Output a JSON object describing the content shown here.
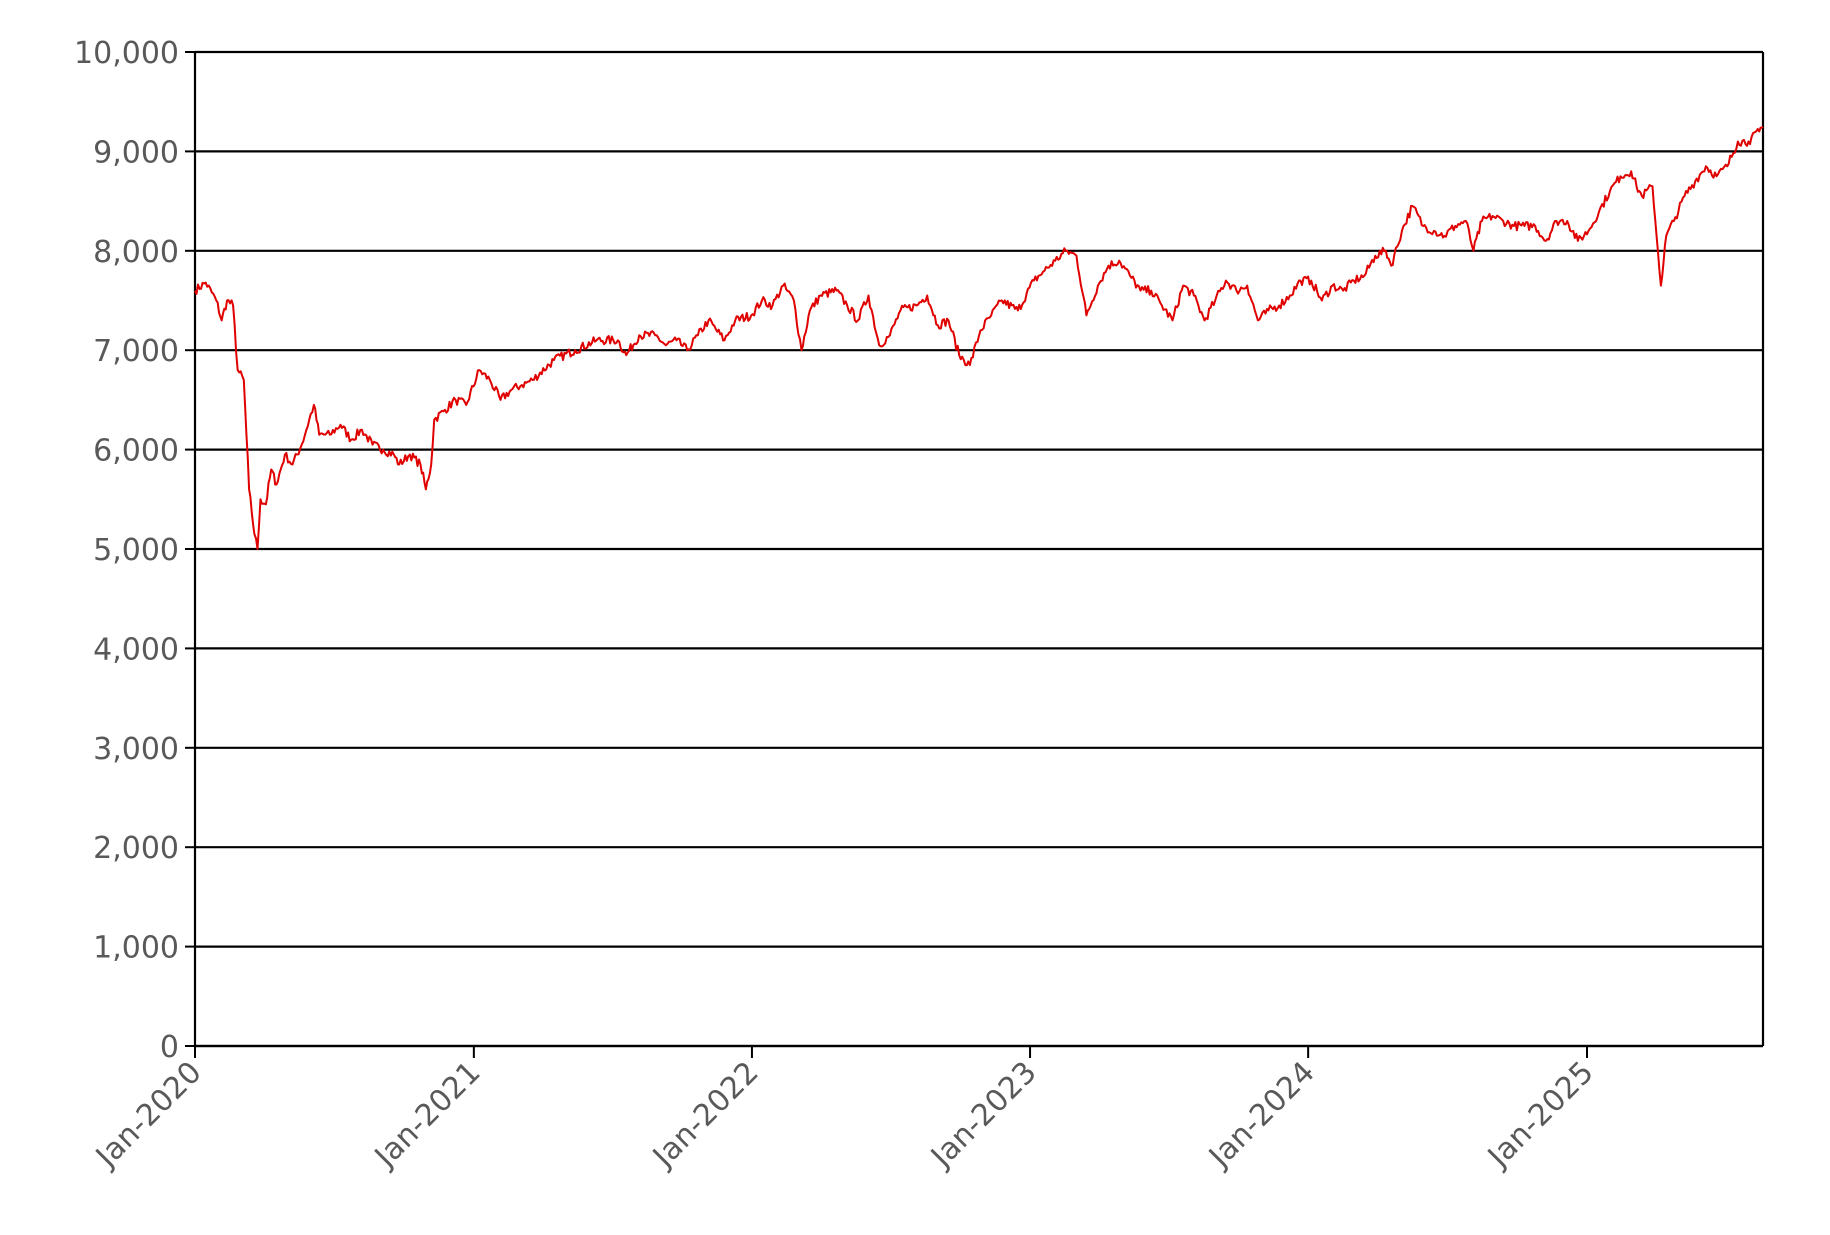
{
  "chart_data": {
    "type": "line",
    "title": "",
    "xlabel": "",
    "ylabel": "",
    "ylim": [
      0,
      10000
    ],
    "xlim": [
      "2020-01-01",
      "2025-08-20"
    ],
    "grid": true,
    "legend": "none",
    "y_ticks": [
      {
        "value": 0,
        "label": "0"
      },
      {
        "value": 1000,
        "label": "1,000"
      },
      {
        "value": 2000,
        "label": "2,000"
      },
      {
        "value": 3000,
        "label": "3,000"
      },
      {
        "value": 4000,
        "label": "4,000"
      },
      {
        "value": 5000,
        "label": "5,000"
      },
      {
        "value": 6000,
        "label": "6,000"
      },
      {
        "value": 7000,
        "label": "7,000"
      },
      {
        "value": 8000,
        "label": "8,000"
      },
      {
        "value": 9000,
        "label": "9,000"
      },
      {
        "value": 10000,
        "label": "10,000"
      }
    ],
    "x_ticks": [
      {
        "date": "2020-01-01",
        "label": "Jan-2020"
      },
      {
        "date": "2021-01-01",
        "label": "Jan-2021"
      },
      {
        "date": "2022-01-01",
        "label": "Jan-2022"
      },
      {
        "date": "2023-01-01",
        "label": "Jan-2023"
      },
      {
        "date": "2024-01-01",
        "label": "Jan-2024"
      },
      {
        "date": "2025-01-01",
        "label": "Jan-2025"
      }
    ],
    "series": [
      {
        "color": "#e00000",
        "points": [
          [
            "2020-01-01",
            7600
          ],
          [
            "2020-01-15",
            7680
          ],
          [
            "2020-01-29",
            7500
          ],
          [
            "2020-02-05",
            7300
          ],
          [
            "2020-02-12",
            7500
          ],
          [
            "2020-02-20",
            7450
          ],
          [
            "2020-02-26",
            6800
          ],
          [
            "2020-03-05",
            6700
          ],
          [
            "2020-03-12",
            5600
          ],
          [
            "2020-03-19",
            5150
          ],
          [
            "2020-03-23",
            5000
          ],
          [
            "2020-03-27",
            5500
          ],
          [
            "2020-04-03",
            5450
          ],
          [
            "2020-04-10",
            5800
          ],
          [
            "2020-04-17",
            5650
          ],
          [
            "2020-04-28",
            5950
          ],
          [
            "2020-05-08",
            5850
          ],
          [
            "2020-05-20",
            6050
          ],
          [
            "2020-06-05",
            6450
          ],
          [
            "2020-06-12",
            6150
          ],
          [
            "2020-06-26",
            6150
          ],
          [
            "2020-07-10",
            6250
          ],
          [
            "2020-07-24",
            6100
          ],
          [
            "2020-08-07",
            6200
          ],
          [
            "2020-08-21",
            6050
          ],
          [
            "2020-09-04",
            6000
          ],
          [
            "2020-09-18",
            5950
          ],
          [
            "2020-09-25",
            5850
          ],
          [
            "2020-10-09",
            5950
          ],
          [
            "2020-10-23",
            5850
          ],
          [
            "2020-10-30",
            5600
          ],
          [
            "2020-11-06",
            5850
          ],
          [
            "2020-11-10",
            6300
          ],
          [
            "2020-11-24",
            6400
          ],
          [
            "2020-12-08",
            6500
          ],
          [
            "2020-12-22",
            6450
          ],
          [
            "2021-01-08",
            6800
          ],
          [
            "2021-01-22",
            6700
          ],
          [
            "2021-02-05",
            6500
          ],
          [
            "2021-02-19",
            6600
          ],
          [
            "2021-03-05",
            6650
          ],
          [
            "2021-03-19",
            6700
          ],
          [
            "2021-04-16",
            6900
          ],
          [
            "2021-05-14",
            7000
          ],
          [
            "2021-06-11",
            7100
          ],
          [
            "2021-07-09",
            7100
          ],
          [
            "2021-07-20",
            6950
          ],
          [
            "2021-08-06",
            7150
          ],
          [
            "2021-08-27",
            7150
          ],
          [
            "2021-09-10",
            7050
          ],
          [
            "2021-09-24",
            7100
          ],
          [
            "2021-10-08",
            7000
          ],
          [
            "2021-10-22",
            7150
          ],
          [
            "2021-11-05",
            7300
          ],
          [
            "2021-11-26",
            7100
          ],
          [
            "2021-12-10",
            7300
          ],
          [
            "2021-12-31",
            7350
          ],
          [
            "2022-01-14",
            7500
          ],
          [
            "2022-01-28",
            7450
          ],
          [
            "2022-02-11",
            7650
          ],
          [
            "2022-02-25",
            7500
          ],
          [
            "2022-03-07",
            7000
          ],
          [
            "2022-03-18",
            7400
          ],
          [
            "2022-04-01",
            7550
          ],
          [
            "2022-04-22",
            7600
          ],
          [
            "2022-05-06",
            7450
          ],
          [
            "2022-05-20",
            7300
          ],
          [
            "2022-06-03",
            7550
          ],
          [
            "2022-06-17",
            7050
          ],
          [
            "2022-07-01",
            7150
          ],
          [
            "2022-07-15",
            7400
          ],
          [
            "2022-08-05",
            7450
          ],
          [
            "2022-08-19",
            7550
          ],
          [
            "2022-09-02",
            7250
          ],
          [
            "2022-09-16",
            7300
          ],
          [
            "2022-09-30",
            6950
          ],
          [
            "2022-10-14",
            6850
          ],
          [
            "2022-10-28",
            7200
          ],
          [
            "2022-11-11",
            7350
          ],
          [
            "2022-11-25",
            7500
          ],
          [
            "2022-12-16",
            7400
          ],
          [
            "2023-01-06",
            7700
          ],
          [
            "2023-01-20",
            7800
          ],
          [
            "2023-02-03",
            7900
          ],
          [
            "2023-02-17",
            8000
          ],
          [
            "2023-03-03",
            7950
          ],
          [
            "2023-03-16",
            7350
          ],
          [
            "2023-03-31",
            7650
          ],
          [
            "2023-04-14",
            7850
          ],
          [
            "2023-04-28",
            7900
          ],
          [
            "2023-05-12",
            7750
          ],
          [
            "2023-05-26",
            7600
          ],
          [
            "2023-06-09",
            7600
          ],
          [
            "2023-06-23",
            7450
          ],
          [
            "2023-07-07",
            7300
          ],
          [
            "2023-07-21",
            7650
          ],
          [
            "2023-08-04",
            7550
          ],
          [
            "2023-08-18",
            7300
          ],
          [
            "2023-09-01",
            7500
          ],
          [
            "2023-09-15",
            7700
          ],
          [
            "2023-09-29",
            7600
          ],
          [
            "2023-10-13",
            7650
          ],
          [
            "2023-10-27",
            7300
          ],
          [
            "2023-11-10",
            7400
          ],
          [
            "2023-11-24",
            7450
          ],
          [
            "2023-12-08",
            7550
          ],
          [
            "2023-12-22",
            7700
          ],
          [
            "2024-01-05",
            7700
          ],
          [
            "2024-01-19",
            7500
          ],
          [
            "2024-02-02",
            7650
          ],
          [
            "2024-02-16",
            7600
          ],
          [
            "2024-03-01",
            7700
          ],
          [
            "2024-03-15",
            7750
          ],
          [
            "2024-03-29",
            7950
          ],
          [
            "2024-04-12",
            8000
          ],
          [
            "2024-04-19",
            7850
          ],
          [
            "2024-05-03",
            8200
          ],
          [
            "2024-05-17",
            8450
          ],
          [
            "2024-05-31",
            8250
          ],
          [
            "2024-06-14",
            8200
          ],
          [
            "2024-06-28",
            8150
          ],
          [
            "2024-07-12",
            8250
          ],
          [
            "2024-07-26",
            8300
          ],
          [
            "2024-08-05",
            8000
          ],
          [
            "2024-08-16",
            8300
          ],
          [
            "2024-08-30",
            8350
          ],
          [
            "2024-09-13",
            8300
          ],
          [
            "2024-09-27",
            8250
          ],
          [
            "2024-10-11",
            8250
          ],
          [
            "2024-10-25",
            8250
          ],
          [
            "2024-11-08",
            8100
          ],
          [
            "2024-11-22",
            8300
          ],
          [
            "2024-12-06",
            8300
          ],
          [
            "2024-12-20",
            8100
          ],
          [
            "2025-01-03",
            8200
          ],
          [
            "2025-01-17",
            8400
          ],
          [
            "2025-01-31",
            8600
          ],
          [
            "2025-02-14",
            8750
          ],
          [
            "2025-02-28",
            8800
          ],
          [
            "2025-03-07",
            8650
          ],
          [
            "2025-03-14",
            8550
          ],
          [
            "2025-03-28",
            8650
          ],
          [
            "2025-04-04",
            8000
          ],
          [
            "2025-04-08",
            7650
          ],
          [
            "2025-04-15",
            8150
          ],
          [
            "2025-04-25",
            8300
          ],
          [
            "2025-05-09",
            8550
          ],
          [
            "2025-05-23",
            8700
          ],
          [
            "2025-06-06",
            8850
          ],
          [
            "2025-06-20",
            8750
          ],
          [
            "2025-07-04",
            8850
          ],
          [
            "2025-07-18",
            9100
          ],
          [
            "2025-08-01",
            9100
          ],
          [
            "2025-08-15",
            9200
          ],
          [
            "2025-08-20",
            9250
          ]
        ]
      }
    ]
  }
}
